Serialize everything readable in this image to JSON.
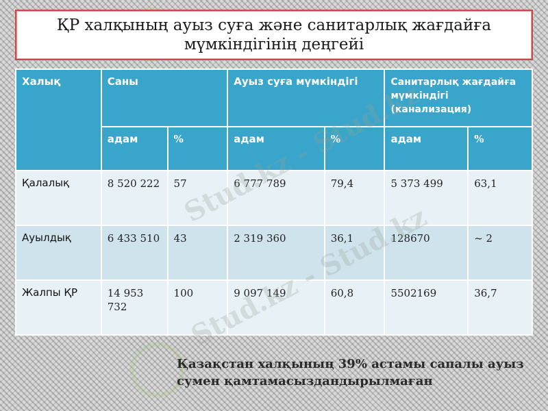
{
  "slide": {
    "title": "ҚР халқының ауыз суға және санитарлық жағдайға мүмкіндігінің деңгейі",
    "note": "Қазақстан халқының 39% астамы сапалы ауыз сумен қамтамасыздандырылмаған",
    "watermark_text": "Stud.kz - Stud.kz"
  },
  "table": {
    "headers": {
      "population": "Халық",
      "count": "Саны",
      "water": "Ауыз суға мүмкіндігі",
      "sanitation": "Санитарлық жағдайға мүмкіндігі (канализация)"
    },
    "subheaders": [
      "адам",
      "%",
      "адам",
      "%",
      "адам",
      "%"
    ],
    "rows": [
      {
        "label": "Қалалық",
        "cells": [
          "8 520 222",
          "57",
          "6 777 789",
          "79,4",
          "5 373 499",
          "63,1"
        ]
      },
      {
        "label": "Ауылдық",
        "cells": [
          "6 433 510",
          "43",
          "2 319 360",
          "36,1",
          "128670",
          "~ 2"
        ]
      },
      {
        "label": "Жалпы ҚР",
        "cells": [
          "14 953 732",
          "100",
          "9 097 149",
          "60,8",
          "5502169",
          "36,7"
        ]
      }
    ]
  }
}
